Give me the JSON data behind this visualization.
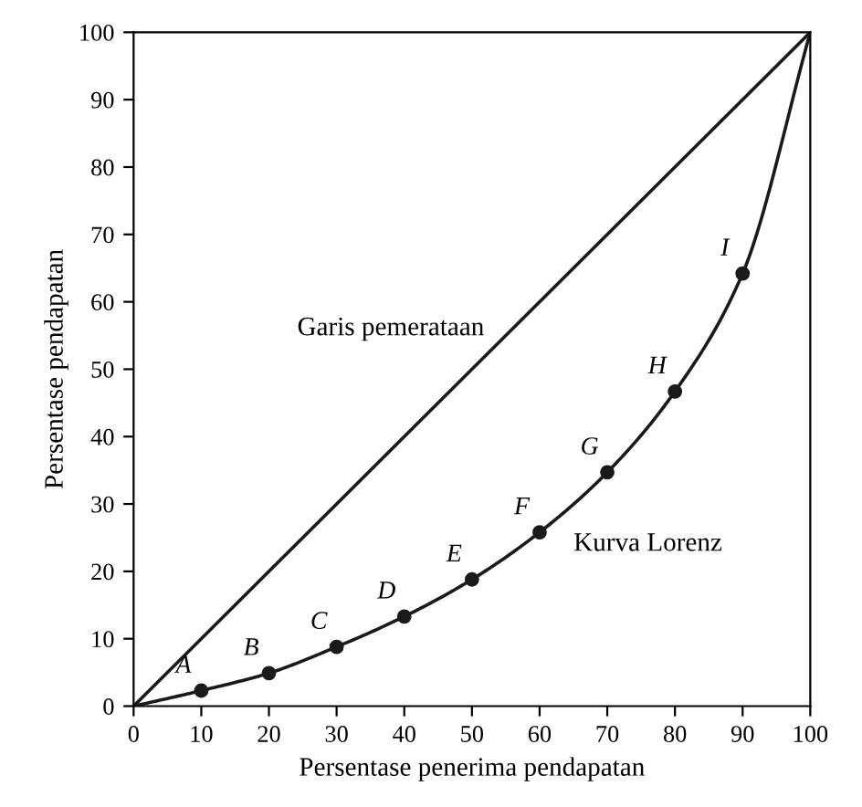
{
  "chart_data": {
    "type": "line",
    "xlabel": "Persentase penerima pendapatan",
    "ylabel": "Persentase pendapatan",
    "series": [
      {
        "color": "#1a1a1a",
        "x": [
          0,
          100
        ],
        "values": [
          0,
          100
        ],
        "marker": "none"
      },
      {
        "color": "#1a1a1a",
        "x": [
          0,
          10,
          20,
          30,
          40,
          50,
          60,
          70,
          80,
          90,
          100
        ],
        "values": [
          0,
          2.3,
          4.9,
          8.8,
          13.3,
          18.8,
          25.8,
          34.7,
          46.7,
          64.2,
          100
        ],
        "marker": "none"
      },
      {
        "type": "scatter",
        "color": "#1a1a1a",
        "x": [
          10,
          20,
          30,
          40,
          50,
          60,
          70,
          80,
          90
        ],
        "values": [
          2.3,
          4.9,
          8.8,
          13.3,
          18.8,
          25.8,
          34.7,
          46.7,
          64.2
        ],
        "marker": "circle"
      }
    ],
    "annotations": [
      "Garis pemerataan",
      "Kurva Lorenz",
      {
        "text": "A",
        "x": 10,
        "y": 2.3
      },
      {
        "text": "B",
        "x": 20,
        "y": 4.9
      },
      {
        "text": "C",
        "x": 30,
        "y": 8.8
      },
      {
        "text": "D",
        "x": 40,
        "y": 13.3
      },
      {
        "text": "E",
        "x": 50,
        "y": 18.8
      },
      {
        "text": "F",
        "x": 60,
        "y": 25.8
      },
      {
        "text": "G",
        "x": 70,
        "y": 34.7
      },
      {
        "text": "H",
        "x": 80,
        "y": 46.7
      },
      {
        "text": "I",
        "x": 90,
        "y": 64.2
      }
    ],
    "xlim": [
      0,
      100
    ],
    "ylim": [
      0,
      100
    ],
    "xticks": [
      0,
      10,
      20,
      30,
      40,
      50,
      60,
      70,
      80,
      90,
      100
    ],
    "yticks": [
      0,
      10,
      20,
      30,
      40,
      50,
      60,
      70,
      80,
      90,
      100
    ],
    "grid": false,
    "legend": false
  }
}
